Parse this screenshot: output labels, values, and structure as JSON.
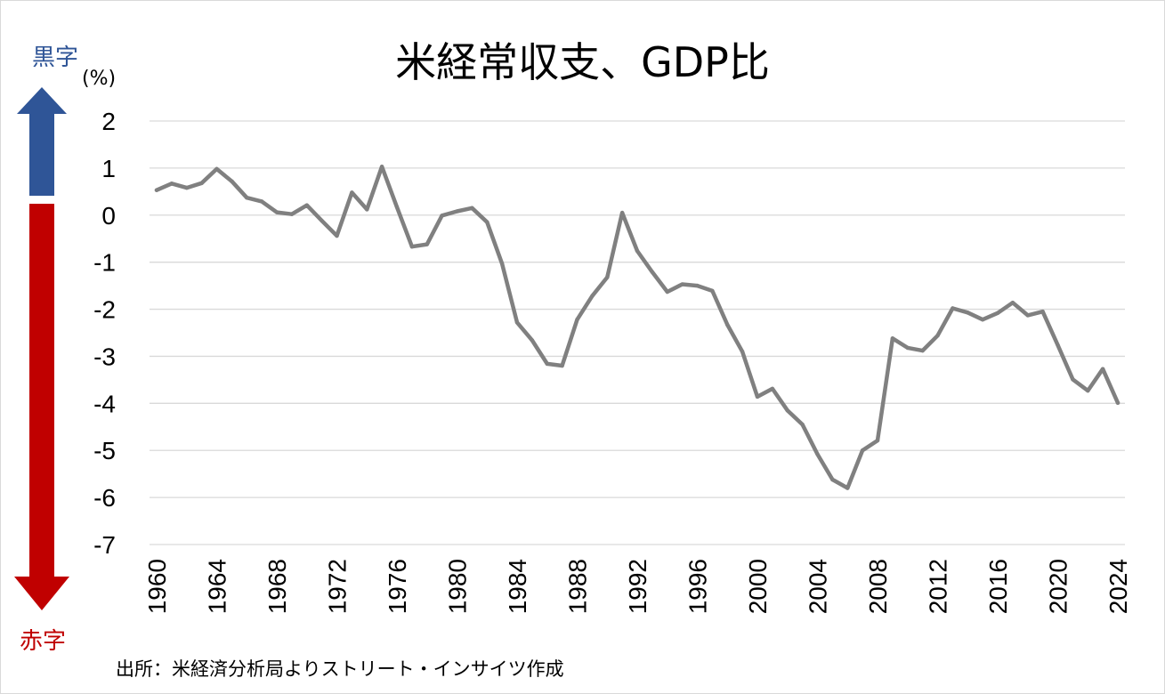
{
  "chart_data": {
    "type": "line",
    "title": "米経常収支、GDP比",
    "unit": "(%)",
    "ylabel": "",
    "xlabel": "",
    "ylim": [
      -7,
      2
    ],
    "yticks": [
      2,
      1,
      0,
      -1,
      -2,
      -3,
      -4,
      -5,
      -6,
      -7
    ],
    "xticks": [
      1960,
      1964,
      1968,
      1972,
      1976,
      1980,
      1984,
      1988,
      1992,
      1996,
      2000,
      2004,
      2008,
      2012,
      2016,
      2020,
      2024
    ],
    "grid": true,
    "legend": "none",
    "line_color": "#808080",
    "x": [
      1960,
      1961,
      1962,
      1963,
      1964,
      1965,
      1966,
      1967,
      1968,
      1969,
      1970,
      1971,
      1972,
      1973,
      1974,
      1975,
      1976,
      1977,
      1978,
      1979,
      1980,
      1981,
      1982,
      1983,
      1984,
      1985,
      1986,
      1987,
      1988,
      1989,
      1990,
      1991,
      1992,
      1993,
      1994,
      1995,
      1996,
      1997,
      1998,
      1999,
      2000,
      2001,
      2002,
      2003,
      2004,
      2005,
      2006,
      2007,
      2008,
      2009,
      2010,
      2011,
      2012,
      2013,
      2014,
      2015,
      2016,
      2017,
      2018,
      2019,
      2020,
      2021,
      2022,
      2023,
      2024
    ],
    "series": [
      {
        "values": [
          0.53,
          0.67,
          0.58,
          0.68,
          0.98,
          0.72,
          0.37,
          0.29,
          0.06,
          0.02,
          0.21,
          -0.12,
          -0.44,
          0.48,
          0.12,
          1.03,
          0.17,
          -0.67,
          -0.62,
          -0.01,
          0.08,
          0.15,
          -0.15,
          -1.03,
          -2.28,
          -2.66,
          -3.16,
          -3.2,
          -2.22,
          -1.72,
          -1.32,
          0.05,
          -0.76,
          -1.21,
          -1.63,
          -1.47,
          -1.5,
          -1.61,
          -2.33,
          -2.9,
          -3.86,
          -3.69,
          -4.15,
          -4.45,
          -5.08,
          -5.62,
          -5.8,
          -5.0,
          -4.79,
          -2.62,
          -2.82,
          -2.88,
          -2.56,
          -1.98,
          -2.07,
          -2.22,
          -2.08,
          -1.86,
          -2.13,
          -2.05,
          -2.76,
          -3.49,
          -3.73,
          -3.27,
          -3.99
        ]
      }
    ],
    "colors": {
      "surplus": "#2f5597",
      "deficit": "#c00000",
      "grid": "#d9d9d9"
    }
  },
  "annotations": {
    "surplus_label": "黒字",
    "deficit_label": "赤字",
    "source": "出所：米経済分析局よりストリート・インサイツ作成"
  }
}
